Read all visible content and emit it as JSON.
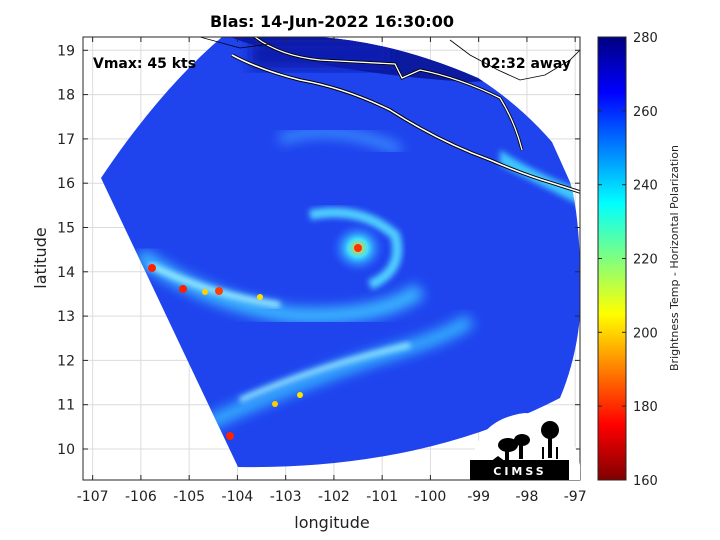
{
  "title": "Blas: 14-Jun-2022 16:30:00",
  "annotations": {
    "vmax": "Vmax: 45 kts",
    "away": "02:32 away"
  },
  "colorbar": {
    "label": "Brightness Temp - Horizontal Polarization",
    "ticks": [
      "280",
      "260",
      "240",
      "220",
      "200",
      "180",
      "160"
    ]
  },
  "logo": {
    "text": "CIMSS"
  },
  "chart_data": {
    "type": "heatmap",
    "title": "Blas: 14-Jun-2022 16:30:00",
    "xlabel": "longitude",
    "ylabel": "latitude",
    "xlim": [
      -107.2,
      -96.9
    ],
    "ylim": [
      9.3,
      19.3
    ],
    "xticks": [
      "-107",
      "-106",
      "-105",
      "-104",
      "-103",
      "-102",
      "-101",
      "-100",
      "-99",
      "-98",
      "-97"
    ],
    "yticks": [
      "10",
      "11",
      "12",
      "13",
      "14",
      "15",
      "16",
      "17",
      "18",
      "19"
    ],
    "grid": true,
    "colorbar_range": [
      160,
      280
    ],
    "colormap": [
      "#800000",
      "#ff0000",
      "#ffff00",
      "#00ffff",
      "#0000ff",
      "#000080"
    ],
    "storm_center": {
      "lon": -101.55,
      "lat": 14.55
    }
  }
}
